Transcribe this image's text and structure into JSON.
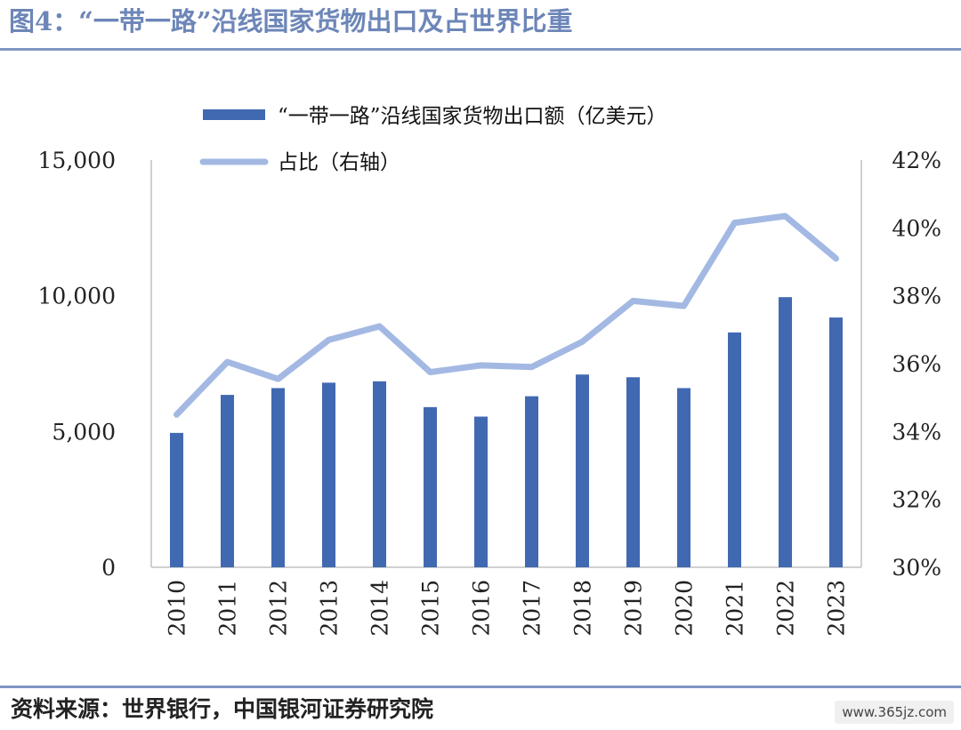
{
  "figure": {
    "title": "图4：“一带一路”沿线国家货物出口及占世界比重",
    "source": "资料来源：世界银行，中国银河证券研究院",
    "watermark": "www.365jz.com"
  },
  "chart_data": {
    "type": "bar",
    "categories": [
      "2010",
      "2011",
      "2012",
      "2013",
      "2014",
      "2015",
      "2016",
      "2017",
      "2018",
      "2019",
      "2020",
      "2021",
      "2022",
      "2023"
    ],
    "series": [
      {
        "name": "“一带一路”沿线国家货物出口额（亿美元）",
        "type": "bar",
        "axis": "left",
        "color": "#4169b1",
        "values": [
          4950,
          6350,
          6600,
          6800,
          6850,
          5900,
          5550,
          6300,
          7100,
          7000,
          6600,
          8650,
          9950,
          9200
        ]
      },
      {
        "name": "占比（右轴）",
        "type": "line",
        "axis": "right",
        "color": "#a3b9e3",
        "values": [
          0.345,
          0.3605,
          0.3555,
          0.367,
          0.371,
          0.3575,
          0.3595,
          0.359,
          0.3665,
          0.3785,
          0.377,
          0.4015,
          0.4035,
          0.391
        ]
      }
    ],
    "y_left": {
      "lim": [
        0,
        15000
      ],
      "ticks": [
        "0",
        "5,000",
        "10,000",
        "15,000"
      ],
      "values": [
        0,
        5000,
        10000,
        15000
      ]
    },
    "y_right": {
      "lim": [
        0.3,
        0.42
      ],
      "ticks": [
        "30%",
        "32%",
        "34%",
        "36%",
        "38%",
        "40%",
        "42%"
      ],
      "values": [
        0.3,
        0.32,
        0.34,
        0.36,
        0.38,
        0.4,
        0.42
      ]
    },
    "legend_position": "top-left",
    "grid": false,
    "xtick_rotation": -90
  }
}
